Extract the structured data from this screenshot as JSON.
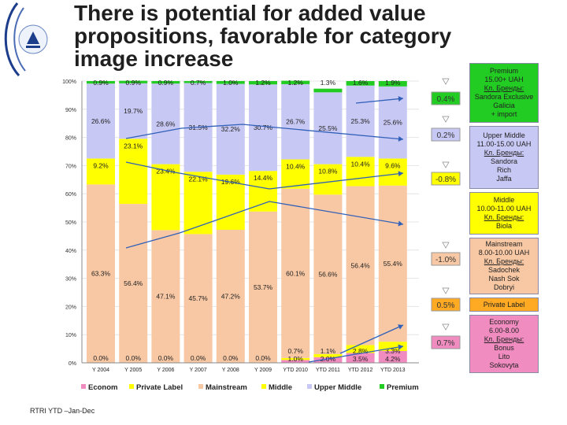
{
  "title": "There is potential for added value propositions, favorable for category image increase",
  "footer": "RTRI YTD –Jan-Dec",
  "colors": {
    "econom": "#f08cc0",
    "private": "#ffff00",
    "mainstream": "#f8c8a4",
    "middle": "#ffff00",
    "upper": "#c8c8f4",
    "premium": "#22cc22"
  },
  "chart_data": {
    "type": "bar",
    "stacked": true,
    "percent_axis": true,
    "categories": [
      "Y 2004",
      "Y 2005",
      "Y 2006",
      "Y 2007",
      "Y 2008",
      "Y 2009",
      "YTD 2010",
      "YTD 2011",
      "YTD 2012",
      "YTD 2013"
    ],
    "yticks": [
      "0%",
      "10%",
      "20%",
      "30%",
      "40%",
      "50%",
      "60%",
      "70%",
      "80%",
      "90%",
      "100%"
    ],
    "ylim": [
      0,
      100
    ],
    "series": [
      {
        "name": "Econom",
        "values": [
          0.0,
          0.0,
          0.0,
          0.0,
          0.0,
          0.0,
          1.0,
          2.0,
          3.5,
          4.2
        ],
        "labels": [
          "0.0%",
          "0.0%",
          "0.0%",
          "0.0%",
          "0.0%",
          "0.0%",
          "1.0%",
          "2.0%",
          "3.5%",
          "4.2%"
        ]
      },
      {
        "name": "Private Label",
        "values": [
          0.0,
          0.0,
          0.0,
          0.0,
          0.0,
          0.0,
          0.7,
          1.1,
          2.8,
          3.3
        ],
        "labels": [
          "0.0%",
          "0.0%",
          "0.0%",
          "0.0%",
          "0.0%",
          "0.0%",
          "0.7%",
          "1.1%",
          "2.8%",
          "3.3%"
        ]
      },
      {
        "name": "Mainstream",
        "values": [
          63.3,
          56.4,
          47.1,
          45.7,
          47.2,
          53.7,
          60.1,
          56.6,
          56.4,
          55.4
        ],
        "labels": [
          "63.3%",
          "56.4%",
          "47.1%",
          "45.7%",
          "47.2%",
          "53.7%",
          "60.1%",
          "56.6%",
          "56.4%",
          "55.4%"
        ]
      },
      {
        "name": "Middle",
        "values": [
          9.2,
          23.1,
          23.4,
          22.1,
          19.6,
          14.4,
          10.4,
          10.8,
          10.4,
          9.6
        ],
        "labels": [
          "9.2%",
          "23.1%",
          "23.4%",
          "22.1%",
          "19.6%",
          "14.4%",
          "10.4%",
          "10.8%",
          "10.4%",
          "9.6%"
        ]
      },
      {
        "name": "Upper Middle",
        "values": [
          26.6,
          19.7,
          28.6,
          31.5,
          32.2,
          30.7,
          26.7,
          25.5,
          25.3,
          25.6
        ],
        "labels": [
          "26.6%",
          "19.7%",
          "28.6%",
          "31.5%",
          "32.2%",
          "30.7%",
          "26.7%",
          "25.5%",
          "25.3%",
          "25.6%"
        ]
      },
      {
        "name": "Premium",
        "values": [
          0.9,
          0.9,
          0.9,
          0.7,
          1.0,
          1.2,
          1.2,
          1.3,
          1.6,
          1.9
        ],
        "labels": [
          "0.9%",
          "0.9%",
          "0.9%",
          "0.7%",
          "1.0%",
          "1.2%",
          "1.2%",
          "1.3%",
          "1.6%",
          "1.9%"
        ]
      }
    ],
    "legend_position": "bottom"
  },
  "changes": [
    {
      "label": "0.4%",
      "color": "#22cc22"
    },
    {
      "label": "0.2%",
      "color": "#c8c8f4"
    },
    {
      "label": "-0.8%",
      "color": "#ffff00"
    },
    {
      "label": "-1.0%",
      "color": "#f8c8a4"
    },
    {
      "label": "0.5%",
      "color": "#ffaa22"
    },
    {
      "label": "0.7%",
      "color": "#f08cc0"
    }
  ],
  "segments": [
    {
      "lines": [
        "Premium",
        "15.00+ UAH",
        "Кл. Бренды:",
        "Sandora Exclusive",
        "Galicia",
        "+ import"
      ],
      "underline": 2,
      "color": "#22cc22"
    },
    {
      "lines": [
        "Upper Middle",
        "11.00-15.00 UAH",
        "Кл. Бренды:",
        "Sandora",
        "Rich",
        "Jaffa"
      ],
      "underline": 2,
      "color": "#c8c8f4"
    },
    {
      "lines": [
        "Middle",
        "10.00-11.00 UAH",
        "Кл. Бренды:",
        "Biola"
      ],
      "underline": 2,
      "color": "#ffff00"
    },
    {
      "lines": [
        "Mainstream",
        "8.00-10.00 UAH",
        "Кл. Бренды:",
        "Sadochek",
        "Nash Sok",
        "Dobryi"
      ],
      "underline": 2,
      "color": "#f8c8a4"
    },
    {
      "lines": [
        "Private Label"
      ],
      "underline": -1,
      "color": "#ffaa22"
    },
    {
      "lines": [
        "Economy",
        "6.00-8.00",
        "Кл. Бренды:",
        "Bonus",
        "Lito",
        "Sokovyta"
      ],
      "underline": 2,
      "color": "#f08cc0"
    }
  ]
}
